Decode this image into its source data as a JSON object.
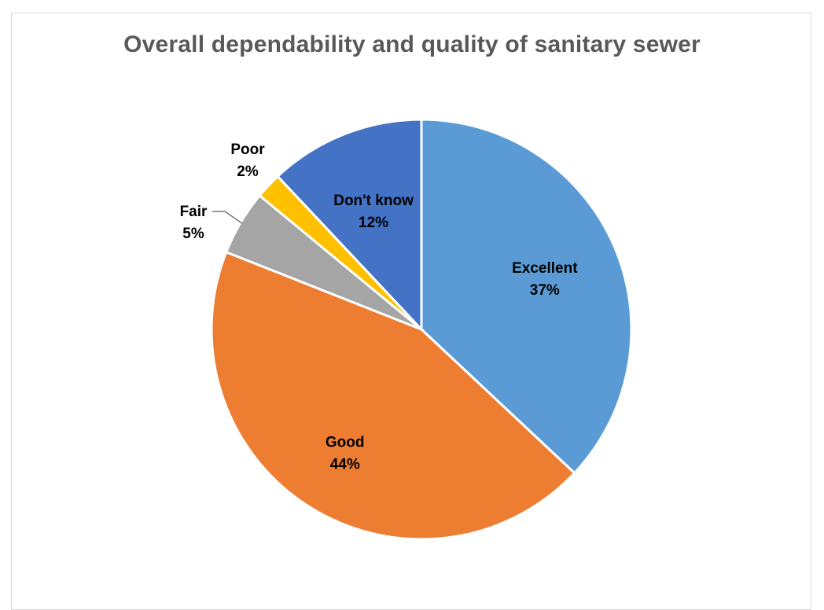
{
  "chart_data": {
    "type": "pie",
    "title": "Overall dependability and quality of sanitary sewer",
    "categories": [
      "Excellent",
      "Good",
      "Fair",
      "Poor",
      "Don't know"
    ],
    "values": [
      37,
      44,
      5,
      2,
      12
    ],
    "value_labels": [
      "37%",
      "44%",
      "5%",
      "2%",
      "12%"
    ],
    "colors": [
      "#5B9BD5",
      "#ED7D31",
      "#A5A5A5",
      "#FFC000",
      "#4472C4"
    ],
    "start_angle": "12 o'clock",
    "direction": "clockwise",
    "legend": "none"
  }
}
